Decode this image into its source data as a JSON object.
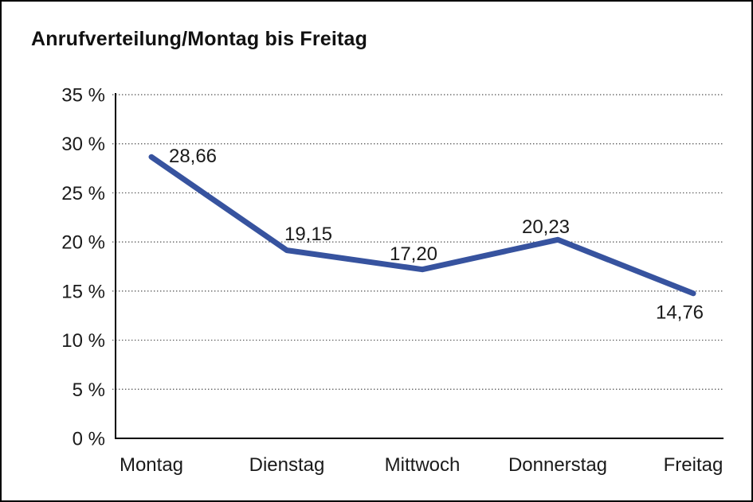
{
  "window": {
    "background": "#ffffff",
    "border_color": "#000000"
  },
  "chart_data": {
    "type": "line",
    "title": "Anrufverteilung/Montag bis Freitag",
    "categories": [
      "Montag",
      "Dienstag",
      "Mittwoch",
      "Donnerstag",
      "Freitag"
    ],
    "values": [
      28.66,
      19.15,
      17.2,
      20.23,
      14.76
    ],
    "data_labels": [
      "28,66",
      "19,15",
      "17,20",
      "20,23",
      "14,76"
    ],
    "xlabel": "",
    "ylabel": "",
    "ylim": [
      0,
      35
    ],
    "ytick_step": 5,
    "ytick_labels": [
      "0 %",
      "5 %",
      "10 %",
      "15 %",
      "20 %",
      "25 %",
      "30 %",
      "35 %"
    ],
    "grid": "horizontal-dotted",
    "legend": false,
    "series": [
      {
        "name": "Anrufverteilung",
        "values": [
          28.66,
          19.15,
          17.2,
          20.23,
          14.76
        ],
        "color": "#37539F"
      }
    ],
    "series_color": "#37539F",
    "grid_color": "#4d4d4d",
    "axis_color": "#000000",
    "text_color": "#1a1a1a"
  }
}
